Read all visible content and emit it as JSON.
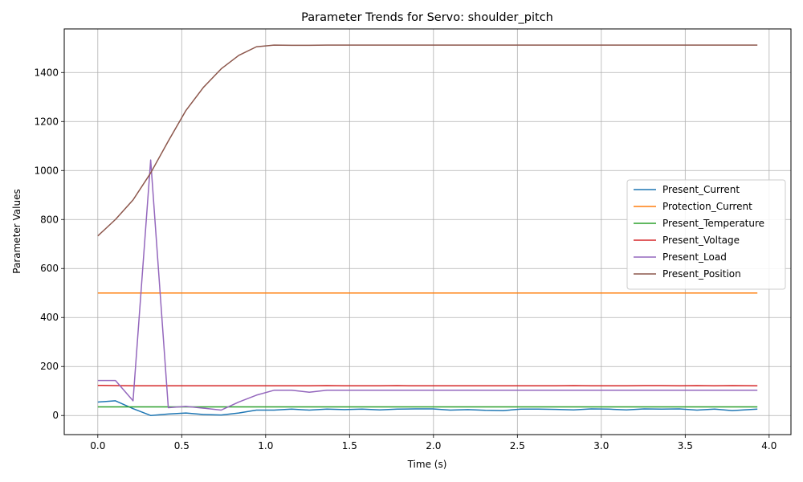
{
  "chart_data": {
    "type": "line",
    "title": "Parameter Trends for Servo: shoulder_pitch",
    "xlabel": "Time (s)",
    "ylabel": "Parameter Values",
    "xlim": [
      -0.2,
      4.13
    ],
    "ylim": [
      -78,
      1578
    ],
    "xticks": [
      0.0,
      0.5,
      1.0,
      1.5,
      2.0,
      2.5,
      3.0,
      3.5,
      4.0
    ],
    "xtick_labels": [
      "0.0",
      "0.5",
      "1.0",
      "1.5",
      "2.0",
      "2.5",
      "3.0",
      "3.5",
      "4.0"
    ],
    "yticks": [
      0,
      200,
      400,
      600,
      800,
      1000,
      1200,
      1400
    ],
    "ytick_labels": [
      "0",
      "200",
      "400",
      "600",
      "800",
      "1000",
      "1200",
      "1400"
    ],
    "grid": true,
    "legend_position": "center-right",
    "x": [
      0.0,
      0.105,
      0.21,
      0.315,
      0.42,
      0.525,
      0.63,
      0.735,
      0.84,
      0.945,
      1.05,
      1.155,
      1.26,
      1.365,
      1.47,
      1.575,
      1.68,
      1.785,
      1.89,
      1.995,
      2.1,
      2.205,
      2.31,
      2.415,
      2.52,
      2.625,
      2.73,
      2.835,
      2.94,
      3.045,
      3.15,
      3.255,
      3.36,
      3.465,
      3.57,
      3.675,
      3.78,
      3.93
    ],
    "series": [
      {
        "name": "Present_Current",
        "color": "#1f77b4",
        "values": [
          55,
          60,
          28,
          0,
          6,
          10,
          4,
          2,
          10,
          22,
          22,
          26,
          22,
          26,
          24,
          26,
          23,
          26,
          27,
          27,
          22,
          24,
          21,
          20,
          26,
          26,
          25,
          23,
          27,
          26,
          23,
          27,
          26,
          27,
          22,
          26,
          20,
          26
        ]
      },
      {
        "name": "Protection_Current",
        "color": "#ff7f0e",
        "values": [
          500,
          500,
          500,
          500,
          500,
          500,
          500,
          500,
          500,
          500,
          500,
          500,
          500,
          500,
          500,
          500,
          500,
          500,
          500,
          500,
          500,
          500,
          500,
          500,
          500,
          500,
          500,
          500,
          500,
          500,
          500,
          500,
          500,
          500,
          500,
          500,
          500,
          500
        ]
      },
      {
        "name": "Present_Temperature",
        "color": "#2ca02c",
        "values": [
          35,
          35,
          35,
          35,
          35,
          35,
          35,
          35,
          35,
          35,
          35,
          35,
          35,
          35,
          35,
          35,
          35,
          35,
          35,
          35,
          35,
          35,
          35,
          35,
          35,
          35,
          35,
          35,
          35,
          35,
          35,
          35,
          35,
          35,
          35,
          35,
          35,
          35
        ]
      },
      {
        "name": "Present_Voltage",
        "color": "#d62728",
        "values": [
          123,
          122,
          121,
          121,
          121,
          121,
          121,
          121,
          121,
          121,
          121,
          121,
          121,
          122,
          121,
          121,
          121,
          122,
          121,
          121,
          121,
          121,
          121,
          121,
          121,
          121,
          121,
          122,
          121,
          121,
          121,
          122,
          122,
          121,
          122,
          121,
          122,
          121
        ]
      },
      {
        "name": "Present_Load",
        "color": "#9467bd",
        "values": [
          143,
          143,
          60,
          1043,
          32,
          37,
          30,
          22,
          55,
          83,
          103,
          103,
          95,
          103,
          103,
          103,
          103,
          103,
          103,
          103,
          103,
          103,
          103,
          103,
          103,
          103,
          103,
          103,
          103,
          103,
          103,
          103,
          103,
          103,
          103,
          103,
          103,
          103
        ]
      },
      {
        "name": "Present_Position",
        "color": "#8c564b",
        "values": [
          733,
          800,
          880,
          990,
          1120,
          1245,
          1340,
          1415,
          1470,
          1505,
          1512,
          1511,
          1511,
          1512,
          1512,
          1512,
          1512,
          1512,
          1512,
          1512,
          1512,
          1512,
          1512,
          1512,
          1512,
          1512,
          1512,
          1512,
          1512,
          1512,
          1512,
          1512,
          1512,
          1512,
          1512,
          1512,
          1512,
          1512
        ]
      }
    ]
  }
}
